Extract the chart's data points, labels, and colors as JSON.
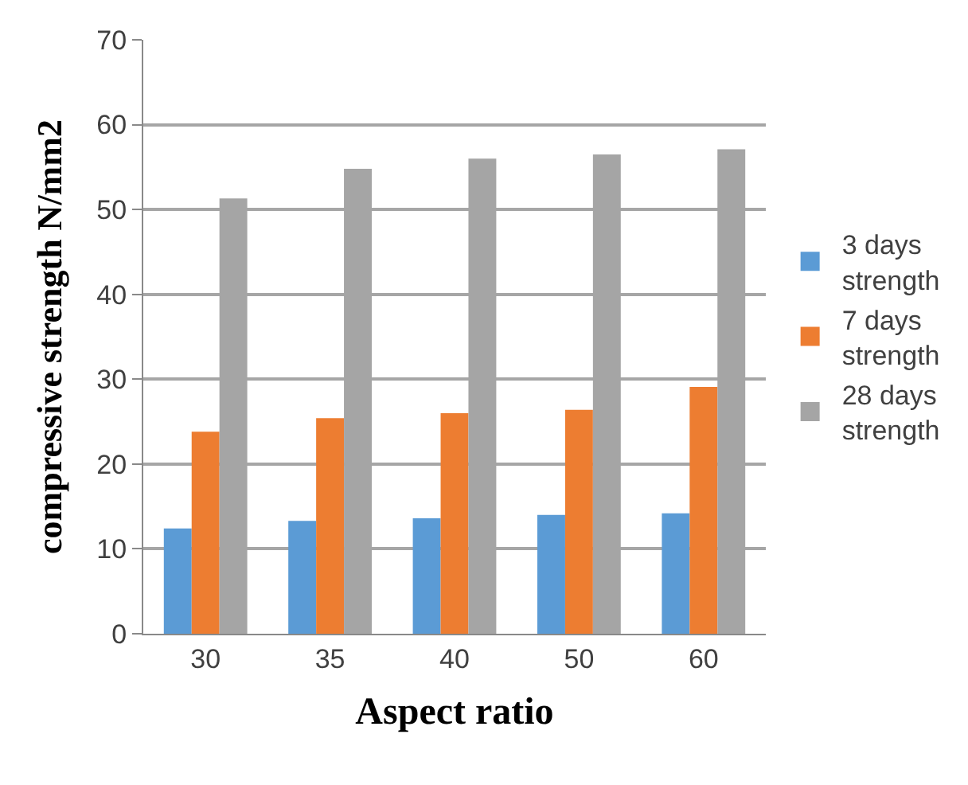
{
  "chart_data": {
    "type": "bar",
    "xlabel": "Aspect ratio",
    "ylabel": "compressive strength N/mm2",
    "categories": [
      "30",
      "35",
      "40",
      "50",
      "60"
    ],
    "series": [
      {
        "name": "3 days strength",
        "color": "#5b9bd5",
        "values": [
          12.4,
          13.3,
          13.6,
          14.0,
          14.2
        ]
      },
      {
        "name": "7 days strength",
        "color": "#ed7d31",
        "values": [
          23.8,
          25.4,
          26.0,
          26.4,
          29.1
        ]
      },
      {
        "name": "28 days strength",
        "color": "#a5a5a5",
        "values": [
          51.3,
          54.8,
          56.0,
          56.5,
          57.1
        ]
      }
    ],
    "ylim": [
      0,
      70
    ],
    "yticks": [
      0,
      10,
      20,
      30,
      40,
      50,
      60,
      70
    ],
    "grid": "y",
    "legend": "right"
  }
}
